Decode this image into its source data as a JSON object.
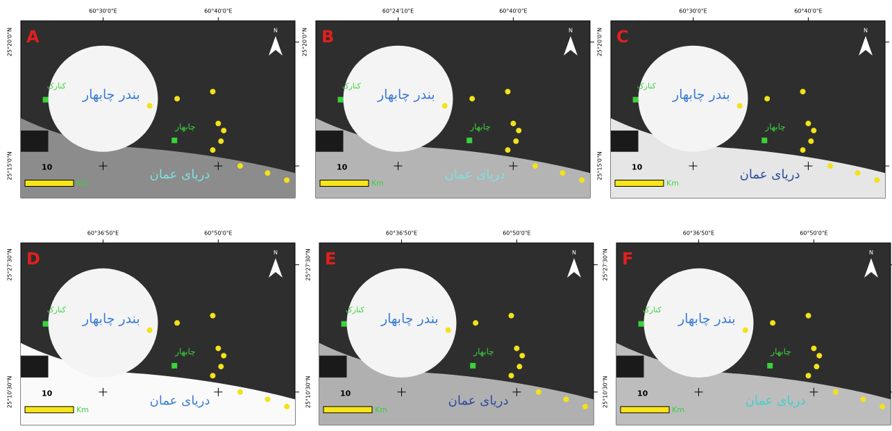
{
  "panels": [
    {
      "letter": "A",
      "top_coords": [
        "60°30'0\"E",
        "60°40'0\"E"
      ],
      "side_coords": [
        "25°20'0\"N",
        "25°15'0\"N"
      ],
      "bay": "بندر چابهار",
      "sea": "دریای عمان",
      "town1": "کنارک",
      "town2": "چابهار",
      "scale_value": "10",
      "scale_unit": "Km",
      "north": "N",
      "sea_color": "#7fe0e0",
      "water_fill": "#8c8c8c"
    },
    {
      "letter": "B",
      "top_coords": [
        "60°24'10\"E",
        "60°40'0\"E"
      ],
      "side_coords": [
        "25°20'0\"N"
      ],
      "bay": "بندر چابهار",
      "sea": "دریای عمان",
      "town1": "کنارک",
      "town2": "چابهار",
      "scale_value": "10",
      "scale_unit": "Km",
      "north": "N",
      "sea_color": "#7fe0e0",
      "water_fill": "#b4b4b4"
    },
    {
      "letter": "C",
      "top_coords": [
        "60°30'0\"E",
        "60°40'0\"E"
      ],
      "side_coords": [
        "25°20'0\"N",
        "25°15'0\"N"
      ],
      "bay": "بندر چابهار",
      "sea": "دریای عمان",
      "town1": "کنارک",
      "town2": "چابهار",
      "scale_value": "10",
      "scale_unit": "Km",
      "north": "N",
      "sea_color": "#2a4a9a",
      "water_fill": "#e6e6e6"
    },
    {
      "letter": "D",
      "top_coords": [
        "60°36'50\"E",
        "60°50'0\"E"
      ],
      "side_coords": [
        "25°27'30\"N",
        "25°10'30\"N"
      ],
      "bay": "بندر چابهار",
      "sea": "دریای عمان",
      "town1": "کنارک",
      "town2": "چابهار",
      "scale_value": "10",
      "scale_unit": "Km",
      "north": "N",
      "sea_color": "#3a7bd5",
      "water_fill": "#fafafa"
    },
    {
      "letter": "E",
      "top_coords": [
        "60°36'50\"E",
        "60°50'0\"E"
      ],
      "side_coords": [
        "25°27'30\"N",
        "25°10'30\"N"
      ],
      "bay": "بندر چابهار",
      "sea": "دریای عمان",
      "town1": "کنارک",
      "town2": "چابهار",
      "scale_value": "10",
      "scale_unit": "Km",
      "north": "N",
      "sea_color": "#2a4a9a",
      "water_fill": "#b0b0b0"
    },
    {
      "letter": "F",
      "top_coords": [
        "60°36'50\"E",
        "60°50'0\"E"
      ],
      "side_coords": [
        "25°27'30\"N",
        "25°10'30\"N"
      ],
      "bay": "بندر چابهار",
      "sea": "دریای عمان",
      "town1": "کنارک",
      "town2": "چابهار",
      "scale_value": "10",
      "scale_unit": "Km",
      "north": "N",
      "sea_color": "#40d0c8",
      "water_fill": "#bdbdbd"
    }
  ]
}
